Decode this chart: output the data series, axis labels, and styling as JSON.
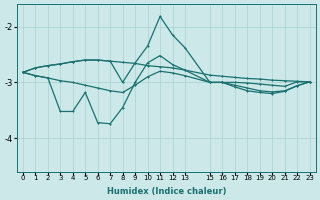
{
  "xlabel": "Humidex (Indice chaleur)",
  "bg_color": "#cce8e8",
  "grid_color": "#aad0d0",
  "line_color": "#1a7070",
  "xlim": [
    -0.5,
    23.5
  ],
  "ylim": [
    -4.6,
    -1.6
  ],
  "yticks": [
    -4,
    -3,
    -2
  ],
  "xticks": [
    0,
    1,
    2,
    3,
    4,
    5,
    6,
    7,
    8,
    9,
    10,
    11,
    12,
    13,
    15,
    16,
    17,
    18,
    19,
    20,
    21,
    22,
    23
  ],
  "line_upper_x": [
    0,
    1,
    2,
    3,
    4,
    5,
    6,
    7,
    8,
    9,
    10,
    11,
    12,
    13,
    15,
    16,
    17,
    18,
    19,
    20,
    21,
    22,
    23
  ],
  "line_upper_y": [
    -2.82,
    -2.74,
    -2.7,
    -2.67,
    -2.63,
    -2.6,
    -2.6,
    -2.62,
    -2.64,
    -2.66,
    -2.7,
    -2.72,
    -2.74,
    -2.78,
    -2.87,
    -2.89,
    -2.91,
    -2.93,
    -2.94,
    -2.96,
    -2.97,
    -2.98,
    -2.99
  ],
  "line_peak_x": [
    0,
    1,
    2,
    3,
    4,
    5,
    6,
    7,
    8,
    9,
    10,
    11,
    12,
    13,
    15,
    16,
    17,
    18,
    19,
    20,
    21,
    22,
    23
  ],
  "line_peak_y": [
    -2.82,
    -2.74,
    -2.7,
    -2.67,
    -2.63,
    -2.6,
    -2.6,
    -2.62,
    -3.0,
    -2.65,
    -2.35,
    -1.82,
    -2.15,
    -2.38,
    -3.0,
    -3.0,
    -3.0,
    -3.01,
    -3.03,
    -3.05,
    -3.07,
    -2.99,
    -2.99
  ],
  "line_lower_x": [
    0,
    1,
    2,
    3,
    4,
    5,
    6,
    7,
    8,
    9,
    10,
    11,
    12,
    13,
    15,
    16,
    17,
    18,
    19,
    20,
    21,
    22,
    23
  ],
  "line_lower_y": [
    -2.82,
    -2.88,
    -2.92,
    -3.52,
    -3.52,
    -3.18,
    -3.72,
    -3.74,
    -3.45,
    -3.0,
    -2.65,
    -2.52,
    -2.68,
    -2.78,
    -3.0,
    -3.0,
    -3.08,
    -3.15,
    -3.18,
    -3.2,
    -3.16,
    -3.06,
    -2.99
  ],
  "line_mid_x": [
    0,
    1,
    2,
    3,
    4,
    5,
    6,
    7,
    8,
    9,
    10,
    11,
    12,
    13,
    15,
    16,
    17,
    18,
    19,
    20,
    21,
    22,
    23
  ],
  "line_mid_y": [
    -2.82,
    -2.88,
    -2.92,
    -2.97,
    -3.0,
    -3.05,
    -3.1,
    -3.15,
    -3.18,
    -3.05,
    -2.9,
    -2.8,
    -2.83,
    -2.88,
    -3.0,
    -3.0,
    -3.05,
    -3.1,
    -3.15,
    -3.17,
    -3.15,
    -3.06,
    -2.99
  ]
}
